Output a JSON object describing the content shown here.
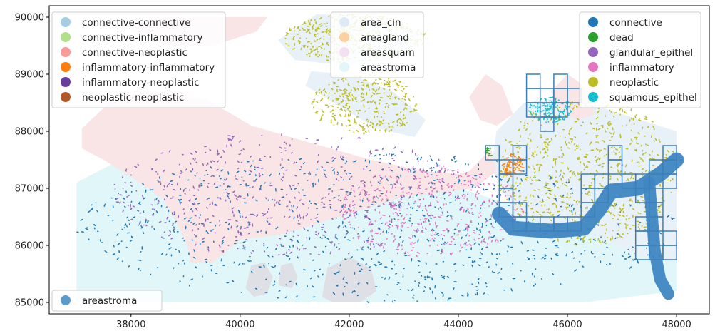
{
  "chart_data": {
    "type": "scatter",
    "title": "",
    "xlabel": "",
    "ylabel": "",
    "xlim": [
      36500,
      48600
    ],
    "ylim": [
      84800,
      90200
    ],
    "x_ticks": [
      38000,
      40000,
      42000,
      44000,
      46000,
      48000
    ],
    "y_ticks": [
      85000,
      86000,
      87000,
      88000,
      89000,
      90000
    ],
    "grid": false,
    "legends": [
      {
        "placement": "top-left",
        "entries": [
          {
            "label": "connective-connective",
            "color": "#a6cee3"
          },
          {
            "label": "connective-inflammatory",
            "color": "#b2df8a"
          },
          {
            "label": "connective-neoplastic",
            "color": "#fb9a99"
          },
          {
            "label": "inflammatory-inflammatory",
            "color": "#ff7f0e"
          },
          {
            "label": "inflammatory-neoplastic",
            "color": "#6a3d9a"
          },
          {
            "label": "neoplastic-neoplastic",
            "color": "#b15928"
          }
        ]
      },
      {
        "placement": "top-center",
        "entries": [
          {
            "label": "area_cin",
            "color": "#deebf7"
          },
          {
            "label": "areagland",
            "color": "#fdd0a2"
          },
          {
            "label": "areasquam",
            "color": "#f3e0f3"
          },
          {
            "label": "areastroma",
            "color": "#e0f6f8"
          }
        ]
      },
      {
        "placement": "top-right",
        "entries": [
          {
            "label": "connective",
            "color": "#1f77b4"
          },
          {
            "label": "dead",
            "color": "#2ca02c"
          },
          {
            "label": "glandular_epithel",
            "color": "#9467bd"
          },
          {
            "label": "inflammatory",
            "color": "#e377c2"
          },
          {
            "label": "neoplastic",
            "color": "#bcbd22"
          },
          {
            "label": "squamous_epithel",
            "color": "#17becf"
          }
        ]
      },
      {
        "placement": "lower-left",
        "entries": [
          {
            "label": "areastroma",
            "color": "#5b9ac9"
          }
        ]
      }
    ],
    "regions": [
      {
        "class": "areastroma",
        "color": "#e0f6f8",
        "polygon": [
          [
            37000,
            85000
          ],
          [
            37000,
            87100
          ],
          [
            38200,
            87700
          ],
          [
            39500,
            87600
          ],
          [
            40700,
            87400
          ],
          [
            42000,
            87250
          ],
          [
            43000,
            87100
          ],
          [
            44200,
            86950
          ],
          [
            45000,
            86700
          ],
          [
            46300,
            86500
          ],
          [
            47200,
            86300
          ],
          [
            48000,
            86200
          ],
          [
            48000,
            85200
          ],
          [
            46300,
            85000
          ]
        ]
      },
      {
        "class": "area_cin",
        "color": "#e8f0f8",
        "polygon": [
          [
            44600,
            87350
          ],
          [
            44700,
            88000
          ],
          [
            45200,
            88500
          ],
          [
            46000,
            88600
          ],
          [
            47000,
            88300
          ],
          [
            48000,
            88000
          ],
          [
            48000,
            85700
          ],
          [
            47400,
            85800
          ],
          [
            46700,
            86100
          ],
          [
            45800,
            86300
          ],
          [
            45000,
            86600
          ],
          [
            44800,
            87000
          ]
        ]
      },
      {
        "class": "area_cin",
        "color": "#e8f0f8",
        "polygon": [
          [
            40700,
            89600
          ],
          [
            41400,
            90050
          ],
          [
            42600,
            90020
          ],
          [
            43400,
            89700
          ],
          [
            43000,
            89300
          ],
          [
            42000,
            89150
          ],
          [
            41000,
            89250
          ]
        ]
      },
      {
        "class": "area_cin",
        "color": "#e8f0f8",
        "polygon": [
          [
            41300,
            89050
          ],
          [
            42000,
            89000
          ],
          [
            42800,
            88700
          ],
          [
            43400,
            88200
          ],
          [
            43200,
            87900
          ],
          [
            42500,
            88050
          ],
          [
            41800,
            88450
          ],
          [
            41200,
            88800
          ]
        ]
      },
      {
        "class": "areasquam_pink",
        "color": "#f9e4e6",
        "polygon": [
          [
            37100,
            88050
          ],
          [
            37600,
            88500
          ],
          [
            38300,
            88700
          ],
          [
            39400,
            88550
          ],
          [
            40200,
            88100
          ],
          [
            41100,
            87850
          ],
          [
            42400,
            87500
          ],
          [
            43400,
            87300
          ],
          [
            44000,
            87250
          ],
          [
            44200,
            87300
          ],
          [
            44600,
            87700
          ],
          [
            44700,
            87300
          ],
          [
            44300,
            87000
          ],
          [
            43000,
            86850
          ],
          [
            41800,
            86500
          ],
          [
            40800,
            86200
          ],
          [
            40000,
            86100
          ],
          [
            39500,
            85700
          ],
          [
            39100,
            85700
          ],
          [
            39000,
            86100
          ],
          [
            38600,
            86800
          ],
          [
            38000,
            87200
          ],
          [
            37500,
            87500
          ],
          [
            37100,
            87700
          ]
        ]
      },
      {
        "class": "areasquam_pink",
        "color": "#f9e4e6",
        "polygon": [
          [
            38000,
            89750
          ],
          [
            38300,
            90000
          ],
          [
            40500,
            90000
          ],
          [
            40300,
            89750
          ],
          [
            39500,
            89500
          ],
          [
            38700,
            89500
          ]
        ]
      },
      {
        "class": "areasquam_pink",
        "color": "#f9e4e6",
        "polygon": [
          [
            44200,
            88600
          ],
          [
            44500,
            89000
          ],
          [
            44800,
            88800
          ],
          [
            45000,
            88300
          ],
          [
            44700,
            88100
          ],
          [
            44400,
            88200
          ]
        ]
      },
      {
        "class": "areasquam_pink",
        "color": "#f9e4e6",
        "polygon": [
          [
            45700,
            88700
          ],
          [
            46000,
            89000
          ],
          [
            46300,
            88800
          ],
          [
            46500,
            88300
          ],
          [
            46200,
            88200
          ],
          [
            45900,
            88300
          ]
        ]
      },
      {
        "class": "areastroma_grey",
        "color": "#dfe0e5",
        "polygon": [
          [
            41500,
            85100
          ],
          [
            41600,
            85600
          ],
          [
            42000,
            85800
          ],
          [
            42400,
            85600
          ],
          [
            42500,
            85200
          ],
          [
            42200,
            85000
          ],
          [
            41700,
            85000
          ]
        ]
      },
      {
        "class": "areastroma_grey",
        "color": "#dfe0e5",
        "polygon": [
          [
            40100,
            85250
          ],
          [
            40200,
            85650
          ],
          [
            40450,
            85700
          ],
          [
            40600,
            85450
          ],
          [
            40500,
            85150
          ],
          [
            40250,
            85100
          ]
        ]
      },
      {
        "class": "areastroma_grey",
        "color": "#dfe0e5",
        "polygon": [
          [
            40700,
            85300
          ],
          [
            40750,
            85650
          ],
          [
            40950,
            85700
          ],
          [
            41050,
            85450
          ],
          [
            40950,
            85250
          ]
        ]
      }
    ],
    "point_clusters": [
      {
        "class": "connective",
        "color": "#1f77b4",
        "xrange": [
          37000,
          48000
        ],
        "yrange": [
          85000,
          87600
        ],
        "count": 900,
        "shape": "ellipse"
      },
      {
        "class": "inflammatory",
        "color": "#e377c2",
        "xrange": [
          41800,
          45200
        ],
        "yrange": [
          85800,
          87400
        ],
        "count": 420,
        "shape": "ellipse"
      },
      {
        "class": "glandular_epithel",
        "color": "#9467bd",
        "xrange": [
          37600,
          44200
        ],
        "yrange": [
          85800,
          88000
        ],
        "count": 520,
        "shape": "ellipse"
      },
      {
        "class": "neoplastic",
        "color": "#bcbd22",
        "xrange": [
          40800,
          43400
        ],
        "yrange": [
          89200,
          90050
        ],
        "count": 420,
        "shape": "ellipse"
      },
      {
        "class": "neoplastic",
        "color": "#bcbd22",
        "xrange": [
          41300,
          43300
        ],
        "yrange": [
          87950,
          89000
        ],
        "count": 320,
        "shape": "ellipse"
      },
      {
        "class": "neoplastic",
        "color": "#bcbd22",
        "xrange": [
          44700,
          48000
        ],
        "yrange": [
          86000,
          88600
        ],
        "count": 700,
        "shape": "ellipse"
      },
      {
        "class": "squamous_epithel",
        "color": "#17becf",
        "xrange": [
          45300,
          46100
        ],
        "yrange": [
          88150,
          88600
        ],
        "count": 120,
        "shape": "ellipse"
      },
      {
        "class": "inflammatory-inflammatory",
        "color": "#ff7f0e",
        "xrange": [
          44800,
          45200
        ],
        "yrange": [
          87200,
          87600
        ],
        "count": 70,
        "shape": "ellipse"
      },
      {
        "class": "dead",
        "color": "#2ca02c",
        "xrange": [
          44500,
          44650
        ],
        "yrange": [
          87550,
          87750
        ],
        "count": 12,
        "shape": "ellipse"
      }
    ],
    "stroma_band": {
      "class": "areastroma",
      "color": "#3f86c3",
      "path": [
        [
          44750,
          86550
        ],
        [
          45000,
          86300
        ],
        [
          45700,
          86250
        ],
        [
          46300,
          86300
        ],
        [
          46600,
          86650
        ],
        [
          46800,
          86950
        ],
        [
          47300,
          87000
        ],
        [
          47700,
          87250
        ],
        [
          48000,
          87500
        ]
      ],
      "branch": [
        [
          47500,
          87100
        ],
        [
          47550,
          86500
        ],
        [
          47600,
          85900
        ],
        [
          47700,
          85400
        ],
        [
          47850,
          85150
        ]
      ],
      "width": 260
    },
    "tile_boxes": [
      [
        44500,
        87500
      ],
      [
        45000,
        87500
      ],
      [
        45000,
        87250
      ],
      [
        44750,
        87250
      ],
      [
        44750,
        87000
      ],
      [
        44750,
        86750
      ],
      [
        44750,
        86500
      ],
      [
        45000,
        86500
      ],
      [
        45000,
        86250
      ],
      [
        45250,
        86250
      ],
      [
        45500,
        86250
      ],
      [
        45750,
        86250
      ],
      [
        46000,
        86250
      ],
      [
        46250,
        86500
      ],
      [
        46250,
        86750
      ],
      [
        46250,
        87000
      ],
      [
        46500,
        86750
      ],
      [
        46500,
        87000
      ],
      [
        46750,
        87250
      ],
      [
        47000,
        87000
      ],
      [
        47250,
        87000
      ],
      [
        47250,
        86750
      ],
      [
        47500,
        86750
      ],
      [
        47500,
        86500
      ],
      [
        47500,
        86250
      ],
      [
        47250,
        86250
      ],
      [
        47250,
        86000
      ],
      [
        47250,
        85750
      ],
      [
        47500,
        85750
      ],
      [
        47750,
        85750
      ],
      [
        47750,
        86000
      ],
      [
        47750,
        87000
      ],
      [
        47750,
        87250
      ],
      [
        47750,
        87500
      ],
      [
        47500,
        87250
      ],
      [
        46750,
        87500
      ],
      [
        45250,
        88500
      ],
      [
        45500,
        88500
      ],
      [
        45750,
        88500
      ],
      [
        45250,
        88250
      ],
      [
        45500,
        88250
      ],
      [
        45500,
        88000
      ],
      [
        45750,
        88250
      ],
      [
        46000,
        88500
      ],
      [
        45250,
        88750
      ],
      [
        45750,
        88750
      ]
    ],
    "tile_size": 250,
    "tile_color": "#3c7fb8"
  }
}
